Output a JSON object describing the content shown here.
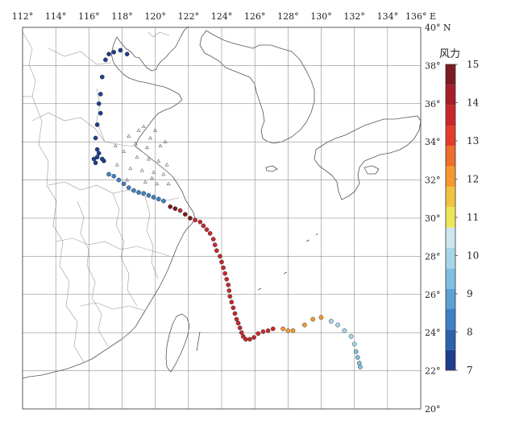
{
  "map": {
    "lon_labels": [
      "112°",
      "114°",
      "116°",
      "118°",
      "120°",
      "122°",
      "124°",
      "126°",
      "128°",
      "130°",
      "132°",
      "134°",
      "136° E"
    ],
    "lat_labels": [
      "20°",
      "22°",
      "24°",
      "26°",
      "28°",
      "30°",
      "32°",
      "34°",
      "36°",
      "38°",
      "40° N"
    ],
    "lon_range": [
      112,
      136
    ],
    "lat_range": [
      20,
      40
    ],
    "grid": true,
    "land_line_color": "#555555",
    "grid_color": "#777777"
  },
  "colorbar": {
    "title": "风力",
    "tick_labels": [
      "7",
      "8",
      "9",
      "10",
      "11",
      "12",
      "13",
      "14",
      "15"
    ],
    "colors": [
      "#1f3e8f",
      "#2c62ad",
      "#3d81c4",
      "#5aa1d6",
      "#7fbfe3",
      "#a7d6ea",
      "#cfe6ee",
      "#eee65a",
      "#f2c43d",
      "#f59a2c",
      "#ee6e2a",
      "#e33d2a",
      "#c8282b",
      "#a61e28",
      "#7d1a22"
    ],
    "level_range": [
      7,
      15
    ]
  },
  "track": [
    {
      "lon": 117.2,
      "lat": 38.6,
      "level": 7
    },
    {
      "lon": 117.5,
      "lat": 38.7,
      "level": 7
    },
    {
      "lon": 117.9,
      "lat": 38.8,
      "level": 7
    },
    {
      "lon": 118.3,
      "lat": 38.6,
      "level": 7
    },
    {
      "lon": 117.0,
      "lat": 38.3,
      "level": 7
    },
    {
      "lon": 116.8,
      "lat": 37.4,
      "level": 7
    },
    {
      "lon": 116.7,
      "lat": 36.5,
      "level": 7
    },
    {
      "lon": 116.6,
      "lat": 36.0,
      "level": 7
    },
    {
      "lon": 116.7,
      "lat": 35.5,
      "level": 7
    },
    {
      "lon": 116.5,
      "lat": 34.9,
      "level": 7
    },
    {
      "lon": 116.4,
      "lat": 34.2,
      "level": 7
    },
    {
      "lon": 116.5,
      "lat": 33.6,
      "level": 7
    },
    {
      "lon": 116.3,
      "lat": 33.1,
      "level": 7
    },
    {
      "lon": 116.5,
      "lat": 33.2,
      "level": 7
    },
    {
      "lon": 116.6,
      "lat": 33.4,
      "level": 7
    },
    {
      "lon": 116.9,
      "lat": 33.0,
      "level": 7
    },
    {
      "lon": 116.4,
      "lat": 32.9,
      "level": 7
    },
    {
      "lon": 116.8,
      "lat": 33.1,
      "level": 7
    },
    {
      "lon": 117.2,
      "lat": 32.3,
      "level": 8
    },
    {
      "lon": 117.5,
      "lat": 32.2,
      "level": 8
    },
    {
      "lon": 117.8,
      "lat": 32.0,
      "level": 8
    },
    {
      "lon": 118.1,
      "lat": 31.8,
      "level": 8
    },
    {
      "lon": 118.4,
      "lat": 31.6,
      "level": 8
    },
    {
      "lon": 118.7,
      "lat": 31.45,
      "level": 8
    },
    {
      "lon": 119.0,
      "lat": 31.35,
      "level": 8
    },
    {
      "lon": 119.3,
      "lat": 31.3,
      "level": 8
    },
    {
      "lon": 119.6,
      "lat": 31.2,
      "level": 8
    },
    {
      "lon": 119.9,
      "lat": 31.1,
      "level": 8
    },
    {
      "lon": 120.2,
      "lat": 31.0,
      "level": 8
    },
    {
      "lon": 120.5,
      "lat": 30.9,
      "level": 8
    },
    {
      "lon": 120.9,
      "lat": 30.6,
      "level": 15
    },
    {
      "lon": 121.2,
      "lat": 30.5,
      "level": 15
    },
    {
      "lon": 121.5,
      "lat": 30.4,
      "level": 14
    },
    {
      "lon": 121.8,
      "lat": 30.2,
      "level": 15
    },
    {
      "lon": 122.1,
      "lat": 30.0,
      "level": 15
    },
    {
      "lon": 122.4,
      "lat": 29.9,
      "level": 14
    },
    {
      "lon": 122.7,
      "lat": 29.8,
      "level": 14
    },
    {
      "lon": 122.9,
      "lat": 29.6,
      "level": 14
    },
    {
      "lon": 123.1,
      "lat": 29.4,
      "level": 14
    },
    {
      "lon": 123.3,
      "lat": 29.2,
      "level": 14
    },
    {
      "lon": 123.5,
      "lat": 28.9,
      "level": 14
    },
    {
      "lon": 123.6,
      "lat": 28.6,
      "level": 14
    },
    {
      "lon": 123.7,
      "lat": 28.3,
      "level": 14
    },
    {
      "lon": 123.9,
      "lat": 28.0,
      "level": 14
    },
    {
      "lon": 124.0,
      "lat": 27.7,
      "level": 14
    },
    {
      "lon": 124.1,
      "lat": 27.4,
      "level": 14
    },
    {
      "lon": 124.2,
      "lat": 27.1,
      "level": 14
    },
    {
      "lon": 124.3,
      "lat": 26.8,
      "level": 14
    },
    {
      "lon": 124.4,
      "lat": 26.5,
      "level": 14
    },
    {
      "lon": 124.45,
      "lat": 26.2,
      "level": 14
    },
    {
      "lon": 124.5,
      "lat": 25.9,
      "level": 14
    },
    {
      "lon": 124.6,
      "lat": 25.6,
      "level": 14
    },
    {
      "lon": 124.7,
      "lat": 25.3,
      "level": 14
    },
    {
      "lon": 124.8,
      "lat": 25.0,
      "level": 14
    },
    {
      "lon": 124.9,
      "lat": 24.7,
      "level": 14
    },
    {
      "lon": 125.0,
      "lat": 24.5,
      "level": 14
    },
    {
      "lon": 125.1,
      "lat": 24.25,
      "level": 14
    },
    {
      "lon": 125.2,
      "lat": 24.0,
      "level": 14
    },
    {
      "lon": 125.3,
      "lat": 23.8,
      "level": 14
    },
    {
      "lon": 125.45,
      "lat": 23.65,
      "level": 14
    },
    {
      "lon": 125.7,
      "lat": 23.65,
      "level": 14
    },
    {
      "lon": 125.95,
      "lat": 23.75,
      "level": 14
    },
    {
      "lon": 126.2,
      "lat": 23.95,
      "level": 14
    },
    {
      "lon": 126.5,
      "lat": 24.05,
      "level": 14
    },
    {
      "lon": 126.8,
      "lat": 24.1,
      "level": 14
    },
    {
      "lon": 127.1,
      "lat": 24.2,
      "level": 14
    },
    {
      "lon": 127.7,
      "lat": 24.2,
      "level": 12
    },
    {
      "lon": 128.0,
      "lat": 24.1,
      "level": 12
    },
    {
      "lon": 128.3,
      "lat": 24.1,
      "level": 12
    },
    {
      "lon": 129.0,
      "lat": 24.4,
      "level": 12
    },
    {
      "lon": 129.5,
      "lat": 24.7,
      "level": 12
    },
    {
      "lon": 130.0,
      "lat": 24.8,
      "level": 12
    },
    {
      "lon": 130.6,
      "lat": 24.6,
      "level": 10
    },
    {
      "lon": 131.0,
      "lat": 24.4,
      "level": 10
    },
    {
      "lon": 131.4,
      "lat": 24.1,
      "level": 10
    },
    {
      "lon": 131.8,
      "lat": 23.8,
      "level": 10
    },
    {
      "lon": 132.0,
      "lat": 23.4,
      "level": 10
    },
    {
      "lon": 132.1,
      "lat": 23.0,
      "level": 9
    },
    {
      "lon": 132.2,
      "lat": 22.7,
      "level": 9
    },
    {
      "lon": 132.3,
      "lat": 22.4,
      "level": 9
    },
    {
      "lon": 132.35,
      "lat": 22.2,
      "level": 9
    }
  ],
  "stations": [
    {
      "lon": 119.3,
      "lat": 34.8
    },
    {
      "lon": 120.0,
      "lat": 34.6
    },
    {
      "lon": 119.7,
      "lat": 34.2
    },
    {
      "lon": 118.8,
      "lat": 33.9
    },
    {
      "lon": 119.5,
      "lat": 33.7
    },
    {
      "lon": 120.3,
      "lat": 33.8
    },
    {
      "lon": 118.1,
      "lat": 33.5
    },
    {
      "lon": 118.9,
      "lat": 33.2
    },
    {
      "lon": 119.6,
      "lat": 33.1
    },
    {
      "lon": 120.2,
      "lat": 33.0
    },
    {
      "lon": 117.7,
      "lat": 32.8
    },
    {
      "lon": 118.5,
      "lat": 32.6
    },
    {
      "lon": 119.2,
      "lat": 32.5
    },
    {
      "lon": 119.9,
      "lat": 32.4
    },
    {
      "lon": 120.5,
      "lat": 32.3
    },
    {
      "lon": 118.3,
      "lat": 32.0
    },
    {
      "lon": 119.4,
      "lat": 31.9
    },
    {
      "lon": 120.1,
      "lat": 31.8
    },
    {
      "lon": 120.8,
      "lat": 31.8
    },
    {
      "lon": 119.8,
      "lat": 32.1
    },
    {
      "lon": 117.6,
      "lat": 33.8
    },
    {
      "lon": 118.4,
      "lat": 34.3
    },
    {
      "lon": 119.0,
      "lat": 34.6
    },
    {
      "lon": 120.6,
      "lat": 34.0
    },
    {
      "lon": 120.7,
      "lat": 32.8
    }
  ]
}
